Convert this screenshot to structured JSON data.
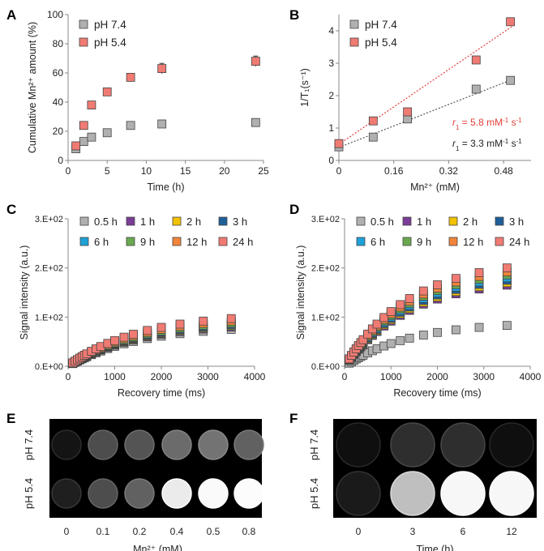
{
  "colors": {
    "gray": "#b0b0b0",
    "red": "#f07b73",
    "red_line": "#e0403a",
    "black_line": "#555555",
    "legend": [
      "#b0b0b0",
      "#7a3d96",
      "#f2c200",
      "#1f5f99",
      "#1ea0d8",
      "#6aa84f",
      "#f2853a",
      "#f07b73"
    ]
  },
  "chart_data": [
    {
      "panel": "A",
      "type": "scatter",
      "title": "",
      "xlabel": "Time (h)",
      "ylabel": "Cumulative Mn²⁺ amount (%)",
      "xlim": [
        0,
        25
      ],
      "ylim": [
        0,
        100
      ],
      "xticks": [
        "0",
        "5",
        "10",
        "15",
        "20",
        "25"
      ],
      "yticks": [
        "0",
        "20",
        "40",
        "60",
        "80",
        "100"
      ],
      "legend": [
        "pH 7.4",
        "pH 5.4"
      ],
      "series": [
        {
          "name": "pH 7.4",
          "x": [
            1,
            2,
            3,
            5,
            8,
            12,
            24
          ],
          "y": [
            8,
            13,
            16,
            19,
            24,
            25,
            26
          ],
          "err": [
            0,
            0,
            0,
            0,
            0,
            2,
            2
          ]
        },
        {
          "name": "pH 5.4",
          "x": [
            1,
            2,
            3,
            5,
            8,
            12,
            24
          ],
          "y": [
            10,
            24,
            38,
            47,
            57,
            63,
            68
          ],
          "err": [
            0,
            0,
            0,
            0,
            2,
            3,
            3
          ]
        }
      ]
    },
    {
      "panel": "B",
      "type": "scatter",
      "xlabel": "Mn²⁺ (mM)",
      "ylabel": "1/T₁(s⁻¹)",
      "xlim": [
        0,
        0.56
      ],
      "ylim": [
        0,
        4.5
      ],
      "xticks": [
        "0",
        "0.16",
        "0.32",
        "0.48"
      ],
      "yticks": [
        "0",
        "1",
        "2",
        "3",
        "4"
      ],
      "legend": [
        "pH 7.4",
        "pH 5.4"
      ],
      "annotations": [
        {
          "prefix": "r",
          "sub": "1",
          "text": " = 5.8 mM",
          "sup1": "-1",
          "mid": " s",
          "sup2": "-1",
          "series": "pH 5.4"
        },
        {
          "prefix": "r",
          "sub": "1",
          "text": " = 3.3 mM",
          "sup1": "-1",
          "mid": " s",
          "sup2": "-1",
          "series": "pH 7.4"
        }
      ],
      "series": [
        {
          "name": "pH 7.4",
          "x": [
            0,
            0.1,
            0.2,
            0.4,
            0.5
          ],
          "y": [
            0.42,
            0.72,
            1.28,
            2.2,
            2.47
          ],
          "fit": [
            0.4,
            4.15
          ]
        },
        {
          "name": "pH 5.4",
          "x": [
            0,
            0.1,
            0.2,
            0.4,
            0.5
          ],
          "y": [
            0.52,
            1.22,
            1.5,
            3.1,
            4.28
          ],
          "fit": [
            0.5,
            7.2
          ]
        }
      ]
    },
    {
      "panel": "C",
      "type": "scatter",
      "xlabel": "Recovery time (ms)",
      "ylabel": "Signal intensity (a.u.)",
      "xlim": [
        0,
        4000
      ],
      "ylim": [
        0,
        300
      ],
      "xticks": [
        "0",
        "1000",
        "2000",
        "3000",
        "4000"
      ],
      "yticks": [
        "0.E+00",
        "1.E+02",
        "2.E+02",
        "3.E+02"
      ],
      "legend": [
        "0.5 h",
        "1 h",
        "2 h",
        "3 h",
        "6 h",
        "9 h",
        "12 h",
        "24 h"
      ],
      "x": [
        100,
        150,
        200,
        250,
        300,
        350,
        400,
        500,
        600,
        700,
        850,
        1000,
        1200,
        1400,
        1700,
        2000,
        2400,
        2900,
        3500
      ],
      "final": [
        75,
        80,
        82,
        84,
        86,
        88,
        92,
        97
      ]
    },
    {
      "panel": "D",
      "type": "scatter",
      "xlabel": "Recovery time (ms)",
      "ylabel": "Signal intensity (a.u.)",
      "xlim": [
        0,
        4000
      ],
      "ylim": [
        0,
        300
      ],
      "xticks": [
        "0",
        "1000",
        "2000",
        "3000",
        "4000"
      ],
      "yticks": [
        "0.E+00",
        "1.E+02",
        "2.E+02",
        "3.E+02"
      ],
      "legend": [
        "0.5 h",
        "1 h",
        "2 h",
        "3 h",
        "6 h",
        "9 h",
        "12 h",
        "24 h"
      ],
      "x": [
        100,
        150,
        200,
        250,
        300,
        350,
        400,
        500,
        600,
        700,
        850,
        1000,
        1200,
        1400,
        1700,
        2000,
        2400,
        2900,
        3500
      ],
      "final": [
        83,
        165,
        170,
        175,
        180,
        186,
        192,
        200
      ]
    }
  ],
  "panel_e": {
    "letter": "E",
    "rows": [
      "pH 7.4",
      "pH 5.4"
    ],
    "cols": [
      "0",
      "0.1",
      "0.2",
      "0.4",
      "0.5",
      "0.8"
    ],
    "xlabel": "Mn²⁺ (mM)",
    "brightness": [
      [
        0.08,
        0.3,
        0.33,
        0.42,
        0.45,
        0.38
      ],
      [
        0.12,
        0.3,
        0.38,
        0.92,
        0.98,
        0.99
      ]
    ]
  },
  "panel_f": {
    "letter": "F",
    "rows": [
      "pH 7.4",
      "pH 5.4"
    ],
    "cols": [
      "0",
      "3",
      "6",
      "12"
    ],
    "xlabel": "Time (h)",
    "brightness": [
      [
        0.06,
        0.18,
        0.18,
        0.06
      ],
      [
        0.1,
        0.75,
        0.97,
        0.97
      ]
    ]
  },
  "letters": [
    "A",
    "B",
    "C",
    "D"
  ]
}
